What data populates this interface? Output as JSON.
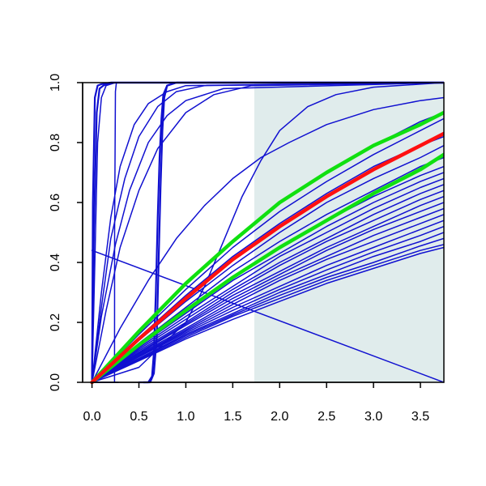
{
  "chart_data": {
    "type": "line",
    "title": "",
    "xlabel": "",
    "ylabel": "",
    "xlim": [
      -0.1,
      3.75
    ],
    "ylim": [
      0,
      1
    ],
    "x_ticks": [
      "0.0",
      "0.5",
      "1.0",
      "1.5",
      "2.0",
      "2.5",
      "3.0",
      "3.5"
    ],
    "y_ticks": [
      "0.0",
      "0.2",
      "0.4",
      "0.6",
      "0.8",
      "1.0"
    ],
    "shaded_region": {
      "x_from": 1.73,
      "x_to": 3.75,
      "color": "#e0ecec"
    },
    "colors": {
      "ensemble": "#1010d0",
      "central": "#ff1010",
      "bounds": "#10e010",
      "axis": "#000000"
    },
    "series": [
      {
        "color": "ensemble",
        "width": 2.2,
        "x": [
          0,
          0.01,
          0.03,
          0.06,
          0.1,
          0.2,
          3.75
        ],
        "y": [
          0,
          0.6,
          0.95,
          0.99,
          0.995,
          1.0,
          1.0
        ]
      },
      {
        "color": "ensemble",
        "width": 2.2,
        "x": [
          0,
          0.02,
          0.05,
          0.08,
          0.12,
          0.2,
          3.75
        ],
        "y": [
          0,
          0.5,
          0.9,
          0.98,
          0.99,
          1.0,
          1.0
        ]
      },
      {
        "color": "ensemble",
        "width": 1.5,
        "x": [
          0,
          0.03,
          0.06,
          0.1,
          0.15,
          0.25,
          3.75
        ],
        "y": [
          0,
          0.4,
          0.8,
          0.95,
          0.99,
          1.0,
          1.0
        ]
      },
      {
        "color": "ensemble",
        "width": 1.5,
        "x": [
          0.24,
          0.241,
          0.25,
          0.26,
          3.75
        ],
        "y": [
          0,
          0.5,
          0.97,
          1.0,
          1.0
        ]
      },
      {
        "color": "ensemble",
        "width": 1.5,
        "x": [
          0.0,
          0.22,
          0.25,
          0.28
        ],
        "y": [
          0.0,
          0.0,
          0.0,
          0.0
        ]
      },
      {
        "color": "ensemble",
        "width": 1.5,
        "x": [
          0,
          0.1,
          0.2,
          0.3,
          0.45,
          0.6,
          0.8,
          1.0,
          3.75
        ],
        "y": [
          0,
          0.3,
          0.55,
          0.72,
          0.86,
          0.93,
          0.97,
          0.99,
          1.0
        ]
      },
      {
        "color": "ensemble",
        "width": 1.5,
        "x": [
          0,
          0.1,
          0.2,
          0.35,
          0.5,
          0.7,
          0.9,
          1.2,
          3.75
        ],
        "y": [
          0,
          0.25,
          0.48,
          0.68,
          0.82,
          0.92,
          0.97,
          0.99,
          1.0
        ]
      },
      {
        "color": "ensemble",
        "width": 1.5,
        "x": [
          0,
          0.1,
          0.25,
          0.4,
          0.6,
          0.8,
          1.0,
          1.4,
          3.75
        ],
        "y": [
          0,
          0.22,
          0.46,
          0.64,
          0.8,
          0.89,
          0.94,
          0.98,
          1.0
        ]
      },
      {
        "color": "ensemble",
        "width": 1.5,
        "x": [
          0,
          0.15,
          0.3,
          0.5,
          0.7,
          1.0,
          1.3,
          1.7,
          3.75
        ],
        "y": [
          0,
          0.24,
          0.45,
          0.64,
          0.78,
          0.9,
          0.96,
          0.99,
          1.0
        ]
      },
      {
        "color": "ensemble",
        "width": 2.2,
        "x": [
          0.5,
          0.6,
          0.64,
          0.66,
          0.68,
          0.7,
          0.72,
          0.74,
          0.76,
          0.8,
          0.9,
          1.5,
          3.75
        ],
        "y": [
          0,
          0.0,
          0.02,
          0.1,
          0.3,
          0.55,
          0.75,
          0.88,
          0.96,
          0.99,
          1.0,
          1.0,
          1.0
        ]
      },
      {
        "color": "ensemble",
        "width": 2.2,
        "x": [
          0.55,
          0.62,
          0.66,
          0.69,
          0.71,
          0.73,
          0.75,
          0.77,
          0.8,
          0.9,
          1.5,
          3.75
        ],
        "y": [
          0,
          0.0,
          0.03,
          0.15,
          0.4,
          0.65,
          0.84,
          0.95,
          0.99,
          1.0,
          1.0,
          1.0
        ]
      },
      {
        "color": "ensemble",
        "width": 1.5,
        "x": [
          0,
          0.3,
          0.6,
          0.9,
          1.2,
          1.5,
          1.8,
          2.1,
          2.5,
          3.0,
          3.5,
          3.75
        ],
        "y": [
          0,
          0.18,
          0.34,
          0.48,
          0.59,
          0.68,
          0.75,
          0.8,
          0.86,
          0.91,
          0.94,
          0.95
        ]
      },
      {
        "color": "ensemble",
        "width": 1.5,
        "x": [
          0,
          0.5,
          1.0,
          1.2,
          1.4,
          1.6,
          1.8,
          2.0,
          2.3,
          2.6,
          3.0,
          3.5,
          3.75
        ],
        "y": [
          0,
          0.05,
          0.2,
          0.32,
          0.47,
          0.62,
          0.74,
          0.84,
          0.92,
          0.96,
          0.985,
          0.995,
          1.0
        ]
      },
      {
        "color": "ensemble",
        "width": 1.5,
        "x": [
          0,
          3.75
        ],
        "y": [
          0.44,
          0.0
        ]
      },
      {
        "color": "ensemble",
        "width": 1.5,
        "x": [
          0,
          0.5,
          1.0,
          1.5,
          2.0,
          2.5,
          3.0,
          3.5,
          3.75
        ],
        "y": [
          0,
          0.17,
          0.33,
          0.47,
          0.6,
          0.7,
          0.79,
          0.87,
          0.9
        ]
      },
      {
        "color": "ensemble",
        "width": 1.5,
        "x": [
          0,
          0.5,
          1.0,
          1.5,
          2.0,
          2.5,
          3.0,
          3.5,
          3.75
        ],
        "y": [
          0,
          0.16,
          0.31,
          0.45,
          0.57,
          0.67,
          0.76,
          0.84,
          0.88
        ]
      },
      {
        "color": "ensemble",
        "width": 1.5,
        "x": [
          0,
          0.5,
          1.0,
          1.5,
          2.0,
          2.5,
          3.0,
          3.5,
          3.75
        ],
        "y": [
          0,
          0.15,
          0.29,
          0.42,
          0.53,
          0.63,
          0.72,
          0.79,
          0.82
        ]
      },
      {
        "color": "ensemble",
        "width": 1.5,
        "x": [
          0,
          0.5,
          1.0,
          1.5,
          2.0,
          2.5,
          3.0,
          3.5,
          3.75
        ],
        "y": [
          0,
          0.14,
          0.27,
          0.39,
          0.5,
          0.6,
          0.68,
          0.75,
          0.79
        ]
      },
      {
        "color": "ensemble",
        "width": 1.5,
        "x": [
          0,
          0.5,
          1.0,
          1.5,
          2.0,
          2.5,
          3.0,
          3.5,
          3.75
        ],
        "y": [
          0,
          0.13,
          0.25,
          0.37,
          0.47,
          0.56,
          0.64,
          0.72,
          0.75
        ]
      },
      {
        "color": "ensemble",
        "width": 1.5,
        "x": [
          0,
          0.5,
          1.0,
          1.5,
          2.0,
          2.5,
          3.0,
          3.5,
          3.75
        ],
        "y": [
          0,
          0.125,
          0.24,
          0.35,
          0.45,
          0.54,
          0.62,
          0.69,
          0.72
        ]
      },
      {
        "color": "ensemble",
        "width": 1.5,
        "x": [
          0,
          0.5,
          1.0,
          1.5,
          2.0,
          2.5,
          3.0,
          3.5,
          3.75
        ],
        "y": [
          0,
          0.12,
          0.23,
          0.34,
          0.43,
          0.52,
          0.6,
          0.67,
          0.7
        ]
      },
      {
        "color": "ensemble",
        "width": 1.5,
        "x": [
          0,
          0.5,
          1.0,
          1.5,
          2.0,
          2.5,
          3.0,
          3.5,
          3.75
        ],
        "y": [
          0,
          0.115,
          0.22,
          0.32,
          0.42,
          0.5,
          0.58,
          0.65,
          0.68
        ]
      },
      {
        "color": "ensemble",
        "width": 1.5,
        "x": [
          0,
          0.5,
          1.0,
          1.5,
          2.0,
          2.5,
          3.0,
          3.5,
          3.75
        ],
        "y": [
          0,
          0.11,
          0.21,
          0.31,
          0.4,
          0.48,
          0.56,
          0.63,
          0.66
        ]
      },
      {
        "color": "ensemble",
        "width": 1.5,
        "x": [
          0,
          0.5,
          1.0,
          1.5,
          2.0,
          2.5,
          3.0,
          3.5,
          3.75
        ],
        "y": [
          0,
          0.105,
          0.2,
          0.3,
          0.39,
          0.47,
          0.54,
          0.61,
          0.64
        ]
      },
      {
        "color": "ensemble",
        "width": 1.5,
        "x": [
          0,
          0.5,
          1.0,
          1.5,
          2.0,
          2.5,
          3.0,
          3.5,
          3.75
        ],
        "y": [
          0,
          0.1,
          0.195,
          0.29,
          0.37,
          0.45,
          0.52,
          0.59,
          0.62
        ]
      },
      {
        "color": "ensemble",
        "width": 1.5,
        "x": [
          0,
          0.5,
          1.0,
          1.5,
          2.0,
          2.5,
          3.0,
          3.5,
          3.75
        ],
        "y": [
          0,
          0.097,
          0.19,
          0.28,
          0.36,
          0.44,
          0.51,
          0.57,
          0.6
        ]
      },
      {
        "color": "ensemble",
        "width": 1.5,
        "x": [
          0,
          0.5,
          1.0,
          1.5,
          2.0,
          2.5,
          3.0,
          3.5,
          3.75
        ],
        "y": [
          0,
          0.094,
          0.18,
          0.27,
          0.35,
          0.42,
          0.49,
          0.55,
          0.58
        ]
      },
      {
        "color": "ensemble",
        "width": 1.5,
        "x": [
          0,
          0.5,
          1.0,
          1.5,
          2.0,
          2.5,
          3.0,
          3.5,
          3.75
        ],
        "y": [
          0,
          0.09,
          0.175,
          0.26,
          0.34,
          0.41,
          0.47,
          0.53,
          0.56
        ]
      },
      {
        "color": "ensemble",
        "width": 1.5,
        "x": [
          0,
          0.5,
          1.0,
          1.5,
          2.0,
          2.5,
          3.0,
          3.5,
          3.75
        ],
        "y": [
          0,
          0.087,
          0.17,
          0.25,
          0.32,
          0.39,
          0.45,
          0.51,
          0.54
        ]
      },
      {
        "color": "ensemble",
        "width": 1.5,
        "x": [
          0,
          0.5,
          1.0,
          1.5,
          2.0,
          2.5,
          3.0,
          3.5,
          3.75
        ],
        "y": [
          0,
          0.085,
          0.165,
          0.24,
          0.31,
          0.375,
          0.435,
          0.49,
          0.52
        ]
      },
      {
        "color": "ensemble",
        "width": 1.5,
        "x": [
          0,
          0.5,
          1.0,
          1.5,
          2.0,
          2.5,
          3.0,
          3.5,
          3.75
        ],
        "y": [
          0,
          0.08,
          0.16,
          0.23,
          0.3,
          0.36,
          0.42,
          0.47,
          0.5
        ]
      },
      {
        "color": "ensemble",
        "width": 1.5,
        "x": [
          0,
          0.5,
          1.0,
          1.5,
          2.0,
          2.5,
          3.0,
          3.5,
          3.75
        ],
        "y": [
          0,
          0.078,
          0.155,
          0.225,
          0.29,
          0.35,
          0.4,
          0.455,
          0.48
        ]
      },
      {
        "color": "ensemble",
        "width": 1.5,
        "x": [
          0,
          0.5,
          1.0,
          1.5,
          2.0,
          2.5,
          3.0,
          3.5,
          3.75
        ],
        "y": [
          0,
          0.075,
          0.15,
          0.22,
          0.28,
          0.34,
          0.39,
          0.44,
          0.46
        ]
      },
      {
        "color": "ensemble",
        "width": 1.5,
        "x": [
          0,
          0.5,
          1.0,
          1.5,
          2.0,
          2.5,
          3.0,
          3.5,
          3.75
        ],
        "y": [
          0,
          0.072,
          0.145,
          0.21,
          0.27,
          0.33,
          0.38,
          0.43,
          0.45
        ]
      },
      {
        "color": "bounds",
        "width": 4.5,
        "x": [
          0,
          0.5,
          1.0,
          1.5,
          2.0,
          2.5,
          3.0,
          3.5,
          3.75
        ],
        "y": [
          0,
          0.17,
          0.33,
          0.47,
          0.6,
          0.7,
          0.79,
          0.86,
          0.9
        ]
      },
      {
        "color": "bounds",
        "width": 4.5,
        "x": [
          0,
          0.5,
          1.0,
          1.5,
          2.0,
          2.5,
          3.0,
          3.5,
          3.75
        ],
        "y": [
          0,
          0.125,
          0.24,
          0.35,
          0.45,
          0.54,
          0.63,
          0.71,
          0.76
        ]
      },
      {
        "color": "central",
        "width": 4.5,
        "x": [
          0,
          0.5,
          1.0,
          1.5,
          2.0,
          2.5,
          3.0,
          3.5,
          3.75
        ],
        "y": [
          0,
          0.145,
          0.28,
          0.41,
          0.52,
          0.62,
          0.71,
          0.79,
          0.83
        ]
      }
    ]
  }
}
